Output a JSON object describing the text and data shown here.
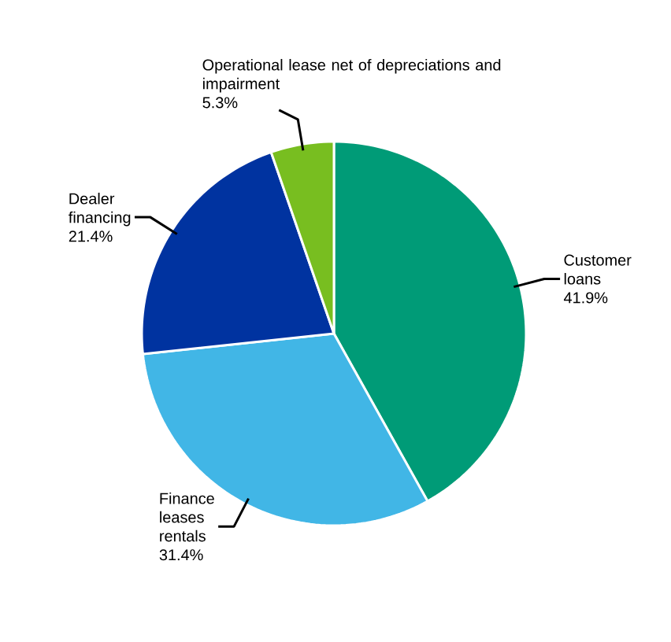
{
  "chart_data": {
    "type": "pie",
    "categories": [
      "Customer loans",
      "Finance leases rentals",
      "Dealer financing",
      "Operational lease net of depreciations and impairment"
    ],
    "values": [
      41.9,
      31.4,
      21.4,
      5.3
    ],
    "value_labels": [
      "41.9%",
      "31.4%",
      "21.4%",
      "5.3%"
    ],
    "colors": [
      "#009b77",
      "#41b6e6",
      "#0033a0",
      "#78be20"
    ]
  }
}
